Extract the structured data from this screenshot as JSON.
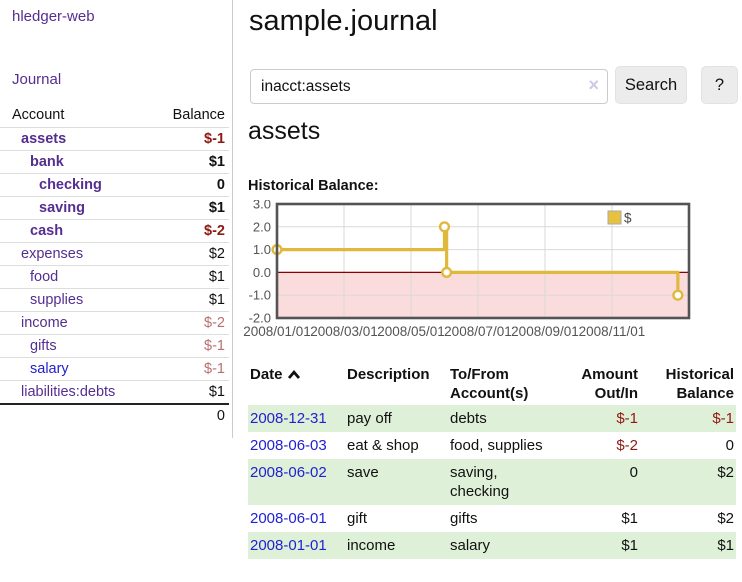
{
  "app": {
    "brand": "hledger-web",
    "nav_journal": "Journal"
  },
  "sidebar": {
    "header": {
      "account": "Account",
      "balance": "Balance"
    },
    "accounts": [
      {
        "name": "assets",
        "balance": "$-1"
      },
      {
        "name": "bank",
        "balance": "$1"
      },
      {
        "name": "checking",
        "balance": "0"
      },
      {
        "name": "saving",
        "balance": "$1"
      },
      {
        "name": "cash",
        "balance": "$-2"
      },
      {
        "name": "expenses",
        "balance": "$2"
      },
      {
        "name": "food",
        "balance": "$1"
      },
      {
        "name": "supplies",
        "balance": "$1"
      },
      {
        "name": "income",
        "balance": "$-2"
      },
      {
        "name": "gifts",
        "balance": "$-1"
      },
      {
        "name": "salary",
        "balance": "$-1"
      },
      {
        "name": "liabilities:debts",
        "balance": "$1"
      }
    ],
    "total": "0"
  },
  "main": {
    "title": "sample.journal",
    "search": {
      "value": "inacct:assets",
      "placeholder": "",
      "clear_icon": "×",
      "button": "Search",
      "help": "?"
    },
    "heading": "assets",
    "chart_label": "Historical Balance:"
  },
  "chart_data": {
    "type": "line",
    "title": "Historical Balance",
    "step": true,
    "series": [
      {
        "name": "$",
        "points": [
          [
            "2008-01-01",
            1
          ],
          [
            "2008-06-01",
            2
          ],
          [
            "2008-06-03",
            0
          ],
          [
            "2008-12-31",
            -1
          ]
        ]
      }
    ],
    "ylim": [
      -2,
      3
    ],
    "yticks": [
      3.0,
      2.0,
      1.0,
      0.0,
      -1.0,
      -2.0
    ],
    "xticks": [
      "2008/01/01",
      "2008/03/01",
      "2008/05/01",
      "2008/07/01",
      "2008/09/01",
      "2008/11/01"
    ],
    "x_span_months": 12.3,
    "grid": true,
    "legend_position": "top-right",
    "colors": {
      "line": "#e0b83e",
      "legend_fill": "#e8c23e",
      "negative_fill": "#fbdcdc",
      "zero_line": "#8b0000",
      "axis_text": "#545454",
      "border": "#545454"
    }
  },
  "table": {
    "headers": {
      "date": "Date",
      "description": "Description",
      "tofrom1": "To/From",
      "tofrom2": "Account(s)",
      "amount1": "Amount",
      "amount2": "Out/In",
      "hist1": "Historical",
      "hist2": "Balance"
    },
    "rows": [
      {
        "date": "2008-12-31",
        "description": "pay off",
        "tofrom": "debts",
        "amount": "$-1",
        "historical": "$-1"
      },
      {
        "date": "2008-06-03",
        "description": "eat & shop",
        "tofrom": "food, supplies",
        "amount": "$-2",
        "historical": "0"
      },
      {
        "date": "2008-06-02",
        "description": "save",
        "tofrom": "saving, checking",
        "amount": "0",
        "historical": "$2"
      },
      {
        "date": "2008-06-01",
        "description": "gift",
        "tofrom": "gifts",
        "amount": "$1",
        "historical": "$2"
      },
      {
        "date": "2008-01-01",
        "description": "income",
        "tofrom": "salary",
        "amount": "$1",
        "historical": "$1"
      }
    ]
  }
}
